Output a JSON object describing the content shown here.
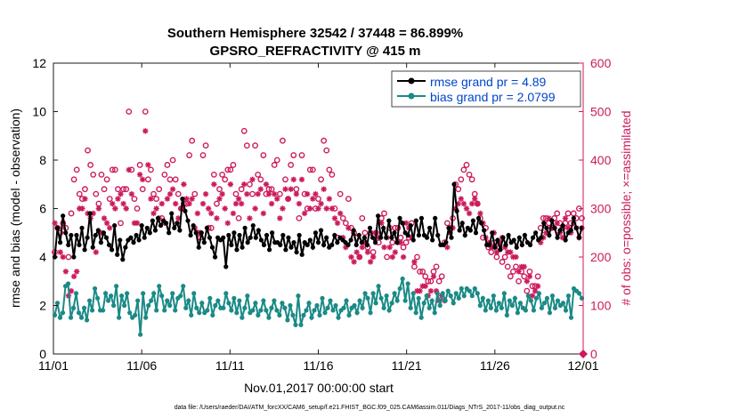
{
  "chart_data": {
    "type": "line",
    "title_line1": "Southern Hemisphere 32542 / 37448 = 86.899%",
    "title_line2": "GPSRO_REFRACTIVITY @ 415 m",
    "ylabel_left": "rmse and bias (model - observation)",
    "ylabel_right": "# of obs: o=possible; ×=assimilated",
    "xlabel": "Nov.01,2017 00:00:00 start",
    "footnote": "data file: /Users/raeder/DAI/ATM_forcXX/CAM6_setup/f.e21.FHIST_BGC.f09_025.CAM6assim.011/Diags_NTrS_2017-11/obs_diag_output.nc",
    "xlim": [
      0,
      30
    ],
    "ylim_left": [
      0,
      12
    ],
    "ylim_right": [
      0,
      600
    ],
    "x_tick_positions": [
      0,
      5,
      10,
      15,
      20,
      25,
      30
    ],
    "x_tick_labels": [
      "11/01",
      "11/06",
      "11/11",
      "11/16",
      "11/21",
      "11/26",
      "12/01"
    ],
    "y_left_ticks": [
      0,
      2,
      4,
      6,
      8,
      10,
      12
    ],
    "y_right_ticks": [
      0,
      100,
      200,
      300,
      400,
      500,
      600
    ],
    "legend": [
      {
        "label": "rmse grand pr = 4.89",
        "color": "#000000"
      },
      {
        "label": "bias grand pr = 2.0799",
        "color": "#1a8a86"
      }
    ],
    "colors": {
      "rmse": "#000000",
      "bias": "#1a8a86",
      "obs": "#cc1a5c",
      "legend_text": "#0044cc",
      "right_axis": "#cc1a5c"
    },
    "series": [
      {
        "name": "rmse",
        "axis": "left",
        "values": [
          4.0,
          5.2,
          4.6,
          5.7,
          5.0,
          4.5,
          4.9,
          4.0,
          4.9,
          4.5,
          5.2,
          4.3,
          4.8,
          5.8,
          4.4,
          4.9,
          5.1,
          4.6,
          5.0,
          4.8,
          4.5,
          4.3,
          5.3,
          4.1,
          4.7,
          3.9,
          4.4,
          4.7,
          4.8,
          4.6,
          4.9,
          4.7,
          5.3,
          4.8,
          5.2,
          5.0,
          5.5,
          5.1,
          5.6,
          5.3,
          5.5,
          5.4,
          5.0,
          5.8,
          5.2,
          5.4,
          5.1,
          6.4,
          5.9,
          5.5,
          4.9,
          5.3,
          5.0,
          4.4,
          5.0,
          4.6,
          5.2,
          4.8,
          4.4,
          4.0,
          4.8,
          4.7,
          4.8,
          3.6,
          4.9,
          4.5,
          5.0,
          4.3,
          4.9,
          4.4,
          5.2,
          4.6,
          4.8,
          5.3,
          4.8,
          5.1,
          4.7,
          4.5,
          4.9,
          4.3,
          5.0,
          4.6,
          4.6,
          4.5,
          4.9,
          4.3,
          4.8,
          4.4,
          4.6,
          4.2,
          4.9,
          4.1,
          4.6,
          4.5,
          4.7,
          4.4,
          5.0,
          4.6,
          5.1,
          4.5,
          4.8,
          4.4,
          4.5,
          4.9,
          4.6,
          4.8,
          4.7,
          4.6,
          4.5,
          4.7,
          5.1,
          4.5,
          4.9,
          4.6,
          4.8,
          4.5,
          5.2,
          4.8,
          4.6,
          5.7,
          4.8,
          5.2,
          4.8,
          5.5,
          4.8,
          5.0,
          4.6,
          5.6,
          5.4,
          5.0,
          4.9,
          5.3,
          4.7,
          5.5,
          4.9,
          5.6,
          4.9,
          4.8,
          5.2,
          4.7,
          5.6,
          4.9,
          4.5,
          4.5,
          4.6,
          5.2,
          4.8,
          7.0,
          5.9,
          5.1,
          5.4,
          4.9,
          5.2,
          5.1,
          5.5,
          5.0,
          5.6,
          5.4,
          5.1,
          4.5,
          4.5,
          5.0,
          4.4,
          4.7,
          4.3,
          4.8,
          4.5,
          4.9,
          4.6,
          4.7,
          4.4,
          4.8,
          4.5,
          4.9,
          4.6,
          4.5,
          4.8,
          5.0,
          4.7,
          4.8,
          5.4,
          5.2,
          4.9,
          5.5,
          5.2,
          4.8,
          5.1,
          5.3,
          4.7,
          5.0,
          5.1,
          5.6,
          5.2,
          4.8,
          5.2
        ]
      },
      {
        "name": "bias",
        "axis": "left",
        "values": [
          1.6,
          2.1,
          1.5,
          1.7,
          2.8,
          2.9,
          1.5,
          1.9,
          2.5,
          1.7,
          1.5,
          1.9,
          1.4,
          2.2,
          1.8,
          2.7,
          2.3,
          1.8,
          1.8,
          2.5,
          2.2,
          2.4,
          2.0,
          2.8,
          1.5,
          2.4,
          2.0,
          2.5,
          1.7,
          1.5,
          1.6,
          2.2,
          0.8,
          2.5,
          1.5,
          2.0,
          2.2,
          2.5,
          1.8,
          2.8,
          2.4,
          1.8,
          2.2,
          2.0,
          2.5,
          1.8,
          2.3,
          2.4,
          2.8,
          1.9,
          2.2,
          1.6,
          2.5,
          1.9,
          1.7,
          2.1,
          1.7,
          1.8,
          2.3,
          1.6,
          2.0,
          2.2,
          1.9,
          1.9,
          2.5,
          2.1,
          1.8,
          2.3,
          1.7,
          2.2,
          1.5,
          1.9,
          2.4,
          1.7,
          1.8,
          2.1,
          1.6,
          1.8,
          2.2,
          1.8,
          1.5,
          1.9,
          2.2,
          1.8,
          1.6,
          2.1,
          1.9,
          1.4,
          2.0,
          1.6,
          1.2,
          2.4,
          1.2,
          1.6,
          1.8,
          2.1,
          1.5,
          1.8,
          2.0,
          1.6,
          2.3,
          1.7,
          1.9,
          2.2,
          1.8,
          2.0,
          1.5,
          1.8,
          1.9,
          2.2,
          1.6,
          1.9,
          2.0,
          1.7,
          2.2,
          1.9,
          2.5,
          2.3,
          1.7,
          2.5,
          2.1,
          2.8,
          2.3,
          1.9,
          2.4,
          1.8,
          2.1,
          2.5,
          2.2,
          2.7,
          3.1,
          2.2,
          2.9,
          1.9,
          2.5,
          1.7,
          2.3,
          1.5,
          2.1,
          2.4,
          1.9,
          2.2,
          1.7,
          2.5,
          2.0,
          2.5,
          2.2,
          2.6,
          2.4,
          2.1,
          2.5,
          2.3,
          2.7,
          2.4,
          2.7,
          2.6,
          2.4,
          2.7,
          2.5,
          2.0,
          2.3,
          1.8,
          2.2,
          1.9,
          2.4,
          1.8,
          2.1,
          1.9,
          2.5,
          1.6,
          2.2,
          2.0,
          2.3,
          1.7,
          2.1,
          1.9,
          1.8,
          2.4,
          2.2,
          1.8,
          2.3,
          2.5,
          1.9,
          2.1,
          2.3,
          1.7,
          2.4,
          1.9,
          2.2,
          2.0,
          2.1,
          1.8,
          2.4,
          1.5,
          2.7,
          2.6,
          2.5,
          2.3
        ]
      },
      {
        "name": "possible",
        "axis": "right",
        "marker": "o",
        "values": [
          210,
          260,
          250,
          270,
          260,
          200,
          290,
          360,
          380,
          330,
          320,
          340,
          420,
          390,
          370,
          330,
          310,
          370,
          340,
          360,
          320,
          380,
          380,
          340,
          270,
          340,
          340,
          500,
          380,
          320,
          300,
          390,
          340,
          500,
          360,
          380,
          330,
          320,
          340,
          280,
          370,
          390,
          360,
          400,
          360,
          330,
          300,
          310,
          310,
          410,
          440,
          330,
          250,
          240,
          410,
          430,
          260,
          260,
          370,
          310,
          340,
          370,
          360,
          380,
          380,
          390,
          330,
          280,
          340,
          460,
          430,
          350,
          330,
          430,
          370,
          360,
          410,
          330,
          340,
          340,
          390,
          400,
          330,
          440,
          360,
          320,
          390,
          410,
          340,
          280,
          410,
          330,
          300,
          380,
          380,
          300,
          320,
          360,
          440,
          420,
          380,
          370,
          300,
          240,
          330,
          280,
          270,
          320,
          260,
          250,
          240,
          200,
          280,
          250,
          220,
          250,
          210,
          250,
          230,
          280,
          290,
          200,
          260,
          230,
          260,
          260,
          240,
          220,
          230,
          240,
          270,
          180,
          200,
          170,
          170,
          160,
          150,
          150,
          170,
          180,
          150,
          160,
          230,
          270,
          260,
          280,
          350,
          340,
          360,
          380,
          390,
          370,
          360,
          330,
          310,
          280,
          240,
          260,
          220,
          210,
          230,
          200,
          220,
          190,
          200,
          180,
          160,
          170,
          180,
          150,
          170,
          160,
          130,
          170,
          140,
          140,
          160,
          260,
          280,
          280,
          270,
          260,
          280,
          290,
          270,
          260,
          270,
          290,
          270,
          290,
          280,
          300,
          280
        ]
      },
      {
        "name": "assimilated",
        "axis": "right",
        "marker": "*",
        "values": [
          270,
          260,
          210,
          200,
          170,
          120,
          130,
          160,
          170,
          300,
          300,
          320,
          290,
          280,
          290,
          210,
          300,
          250,
          280,
          270,
          260,
          310,
          300,
          320,
          330,
          310,
          300,
          380,
          330,
          270,
          270,
          370,
          360,
          460,
          390,
          320,
          290,
          300,
          280,
          310,
          270,
          320,
          330,
          340,
          310,
          280,
          300,
          350,
          320,
          310,
          320,
          260,
          290,
          250,
          310,
          330,
          300,
          290,
          350,
          280,
          320,
          330,
          300,
          270,
          350,
          290,
          310,
          320,
          310,
          350,
          330,
          280,
          360,
          300,
          330,
          340,
          290,
          350,
          330,
          310,
          330,
          320,
          280,
          300,
          340,
          320,
          340,
          360,
          330,
          310,
          360,
          290,
          330,
          300,
          320,
          330,
          300,
          310,
          340,
          300,
          320,
          300,
          280,
          270,
          290,
          240,
          220,
          260,
          200,
          190,
          210,
          200,
          220,
          230,
          210,
          190,
          200,
          250,
          240,
          270,
          220,
          240,
          220,
          200,
          210,
          230,
          230,
          200,
          270,
          260,
          240,
          190,
          130,
          130,
          140,
          140,
          120,
          130,
          160,
          130,
          110,
          120,
          110,
          220,
          250,
          260,
          300,
          310,
          320,
          310,
          300,
          290,
          310,
          320,
          310,
          290,
          270,
          240,
          230,
          220,
          250,
          210,
          230,
          240,
          220,
          210,
          210,
          200,
          200,
          170,
          180,
          180,
          150,
          160,
          120,
          130,
          140,
          230,
          240,
          250,
          280,
          260,
          260,
          270,
          250,
          240,
          280,
          260,
          250,
          270,
          260,
          240,
          260
        ]
      }
    ]
  }
}
